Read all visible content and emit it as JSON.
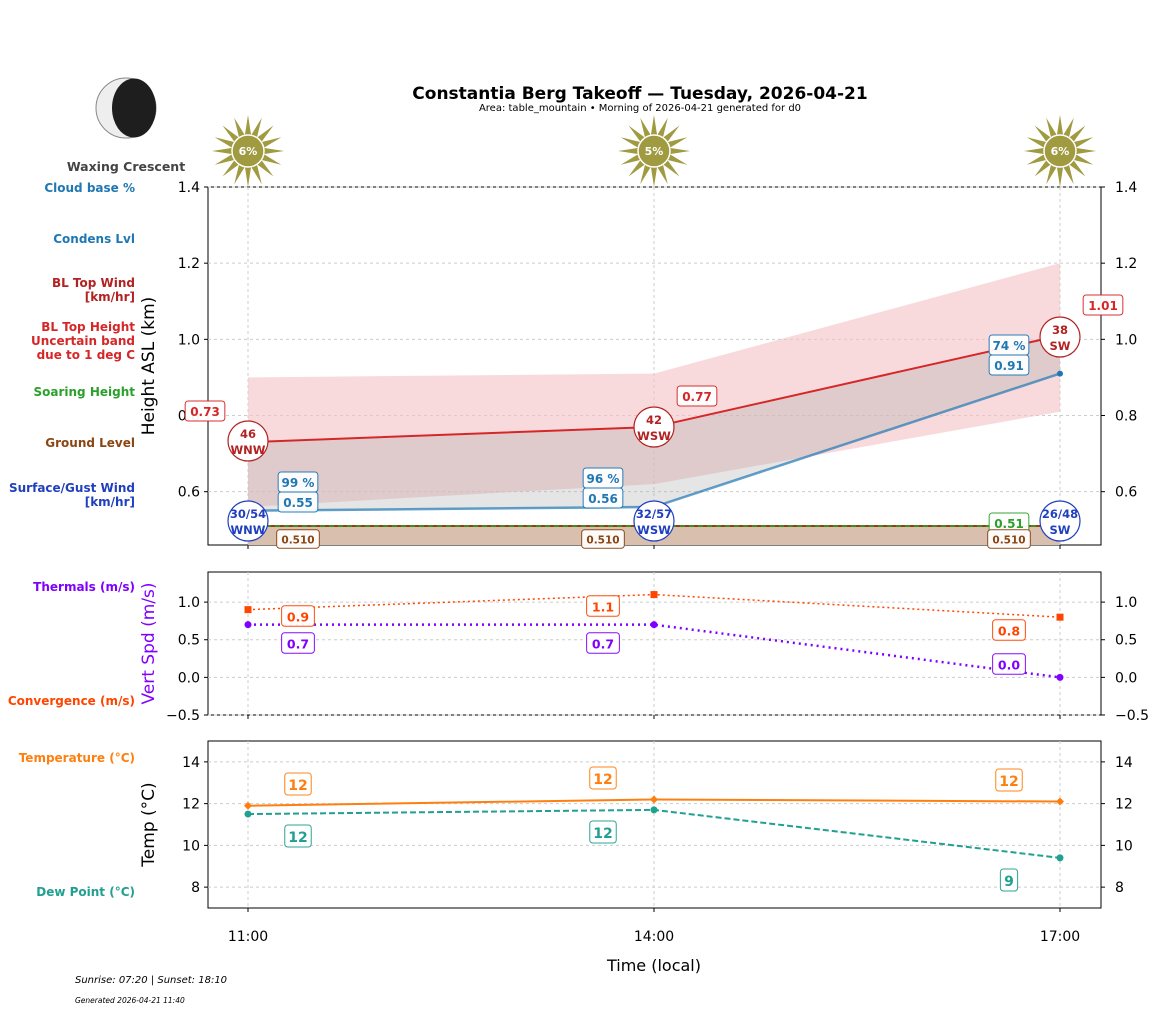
{
  "header": {
    "title": "Constantia Berg Takeoff — Tuesday, 2026-04-21",
    "subtitle": "Area: table_mountain • Morning of 2026-04-21 generated for d0"
  },
  "moon": {
    "phase": "Waxing Crescent",
    "icon": "moon-waxing-crescent-icon"
  },
  "footer": {
    "sun": "Sunrise: 07:20 | Sunset: 18:10",
    "generated": "Generated 2026-04-21 11:40"
  },
  "left_labels": [
    {
      "text": "Cloud base %",
      "color": "#1f77b4"
    },
    {
      "text": "Condens Lvl",
      "color": "#1f77b4"
    },
    {
      "text": "BL Top Wind\n[km/hr]",
      "color": "#b22222"
    },
    {
      "text": "BL Top Height\nUncertain band\ndue to 1 deg C",
      "color": "#d62728"
    },
    {
      "text": "Soaring Height",
      "color": "#2ca02c"
    },
    {
      "text": "Ground Level",
      "color": "#8b4513"
    },
    {
      "text": "Surface/Gust Wind\n[km/hr]",
      "color": "#1f3fbf"
    },
    {
      "text": "Thermals (m/s)",
      "color": "#8000ff"
    },
    {
      "text": "Convergence (m/s)",
      "color": "#ff4500"
    },
    {
      "text": "Temperature (°C)",
      "color": "#ff7f0e"
    },
    {
      "text": "Dew Point (°C)",
      "color": "#20a090"
    }
  ],
  "chart_data": [
    {
      "type": "line",
      "ylabel": "Height ASL (km)",
      "ylim": [
        0.46,
        1.4
      ],
      "yticks": [
        0.6,
        0.8,
        1.0,
        1.2,
        1.4
      ],
      "grid": true,
      "x": [
        "11:00",
        "14:00",
        "17:00"
      ],
      "sun_percent": [
        "6%",
        "5%",
        "6%"
      ],
      "bl_top": [
        0.73,
        0.77,
        1.01
      ],
      "bl_top_labels": [
        "0.73",
        "0.77",
        "1.01"
      ],
      "uncertain_upper": [
        0.9,
        0.91,
        1.2
      ],
      "uncertain_lower": [
        0.56,
        0.62,
        0.81
      ],
      "condens": [
        0.55,
        0.56,
        0.91
      ],
      "condens_labels": [
        "0.55",
        "0.56",
        "0.91"
      ],
      "cloud_base_pct": [
        "99 %",
        "96 %",
        "74 %"
      ],
      "soaring": [
        0.51,
        0.51,
        0.51
      ],
      "soaring_label": "0.51",
      "ground": [
        0.51,
        0.51,
        0.51
      ],
      "ground_labels": [
        "0.510",
        "0.510",
        "0.510"
      ],
      "bl_wind": [
        [
          "46",
          "WNW"
        ],
        [
          "42",
          "WSW"
        ],
        [
          "38",
          "SW"
        ]
      ],
      "surface_wind": [
        [
          "30/54",
          "WNW"
        ],
        [
          "32/57",
          "WSW"
        ],
        [
          "26/48",
          "SW"
        ]
      ],
      "colors": {
        "bl_top": "#d62728",
        "band": "#f4c2c4",
        "condens": "#1f77b4",
        "soaring": "#2ca02c",
        "ground": "#d9bfae",
        "ground_line": "#8b4513",
        "bl_wind": "#b22222",
        "surface_wind": "#1f3fbf",
        "sun": "#a09a40"
      }
    },
    {
      "type": "line",
      "ylabel": "Vert Spd (m/s)",
      "ylim": [
        -0.5,
        1.4
      ],
      "yticks": [
        -0.5,
        0.0,
        0.5,
        1.0
      ],
      "grid": true,
      "series": [
        {
          "name": "Thermals (m/s)",
          "values": [
            0.7,
            0.7,
            0.0
          ],
          "labels": [
            "0.7",
            "0.7",
            "0.0"
          ],
          "color": "#8000ff"
        },
        {
          "name": "Convergence (m/s)",
          "values": [
            0.9,
            1.1,
            0.8
          ],
          "labels": [
            "0.9",
            "1.1",
            "0.8"
          ],
          "color": "#ff4500"
        }
      ]
    },
    {
      "type": "line",
      "ylabel": "Temp (°C)",
      "xlabel": "Time (local)",
      "ylim": [
        7,
        15
      ],
      "yticks": [
        8,
        10,
        12,
        14
      ],
      "grid": true,
      "series": [
        {
          "name": "Temperature (°C)",
          "values": [
            11.9,
            12.2,
            12.1
          ],
          "labels": [
            "12",
            "12",
            "12"
          ],
          "color": "#ff7f0e"
        },
        {
          "name": "Dew Point (°C)",
          "values": [
            11.5,
            11.7,
            9.4
          ],
          "labels": [
            "12",
            "12",
            "9"
          ],
          "color": "#20a090"
        }
      ]
    }
  ]
}
